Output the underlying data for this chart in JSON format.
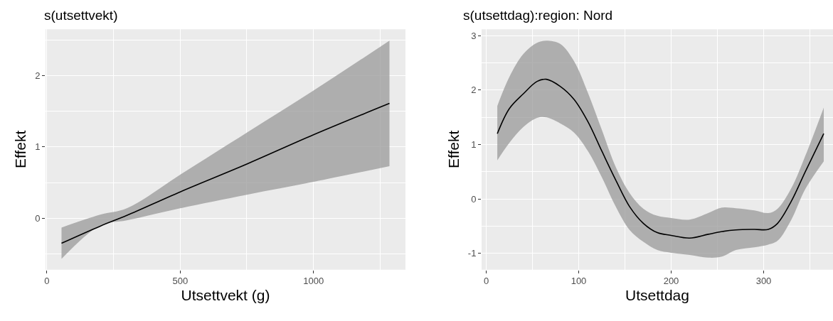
{
  "chart_data": [
    {
      "type": "line",
      "title": "s(utsettvekt)",
      "xlabel": "Utsettvekt (g)",
      "ylabel": "Effekt",
      "xlim": [
        -5,
        1345
      ],
      "ylim": [
        -0.72,
        2.65
      ],
      "xticks": [
        0,
        500,
        1000
      ],
      "yticks": [
        0,
        1,
        2
      ],
      "grid": true,
      "x": [
        55,
        200,
        300,
        500,
        750,
        1000,
        1285
      ],
      "series": [
        {
          "color": "#000000",
          "values": [
            -0.35,
            -0.11,
            0.04,
            0.37,
            0.76,
            1.17,
            1.61
          ],
          "lower": [
            -0.57,
            -0.1,
            -0.03,
            0.14,
            0.33,
            0.51,
            0.73
          ],
          "upper": [
            -0.13,
            0.05,
            0.14,
            0.61,
            1.2,
            1.79,
            2.49
          ]
        }
      ]
    },
    {
      "type": "line",
      "title": "s(utsettdag):region: Nord",
      "xlabel": "Utsettdag",
      "ylabel": "Effekt",
      "xlim": [
        -5,
        375
      ],
      "ylim": [
        -1.3,
        3.12
      ],
      "xticks": [
        0,
        100,
        200,
        300
      ],
      "yticks": [
        -1,
        0,
        1,
        2,
        3
      ],
      "grid": true,
      "x": [
        12,
        25,
        40,
        55,
        65,
        80,
        95,
        110,
        125,
        140,
        155,
        170,
        185,
        200,
        220,
        240,
        255,
        270,
        290,
        305,
        315,
        330,
        345,
        365
      ],
      "series": [
        {
          "color": "#000000",
          "values": [
            1.2,
            1.66,
            1.93,
            2.16,
            2.2,
            2.07,
            1.83,
            1.42,
            0.88,
            0.35,
            -0.14,
            -0.45,
            -0.62,
            -0.67,
            -0.72,
            -0.65,
            -0.6,
            -0.57,
            -0.56,
            -0.56,
            -0.45,
            -0.04,
            0.5,
            1.2
          ],
          "lower": [
            0.71,
            1.03,
            1.32,
            1.49,
            1.5,
            1.39,
            1.22,
            0.88,
            0.4,
            -0.14,
            -0.57,
            -0.79,
            -0.94,
            -0.99,
            -1.03,
            -1.08,
            -1.06,
            -0.94,
            -0.89,
            -0.84,
            -0.77,
            -0.38,
            0.18,
            0.69
          ],
          "upper": [
            1.71,
            2.24,
            2.66,
            2.87,
            2.91,
            2.85,
            2.53,
            1.95,
            1.27,
            0.59,
            0.11,
            -0.18,
            -0.31,
            -0.35,
            -0.38,
            -0.26,
            -0.16,
            -0.17,
            -0.21,
            -0.26,
            -0.18,
            0.2,
            0.79,
            1.68
          ]
        }
      ]
    }
  ]
}
